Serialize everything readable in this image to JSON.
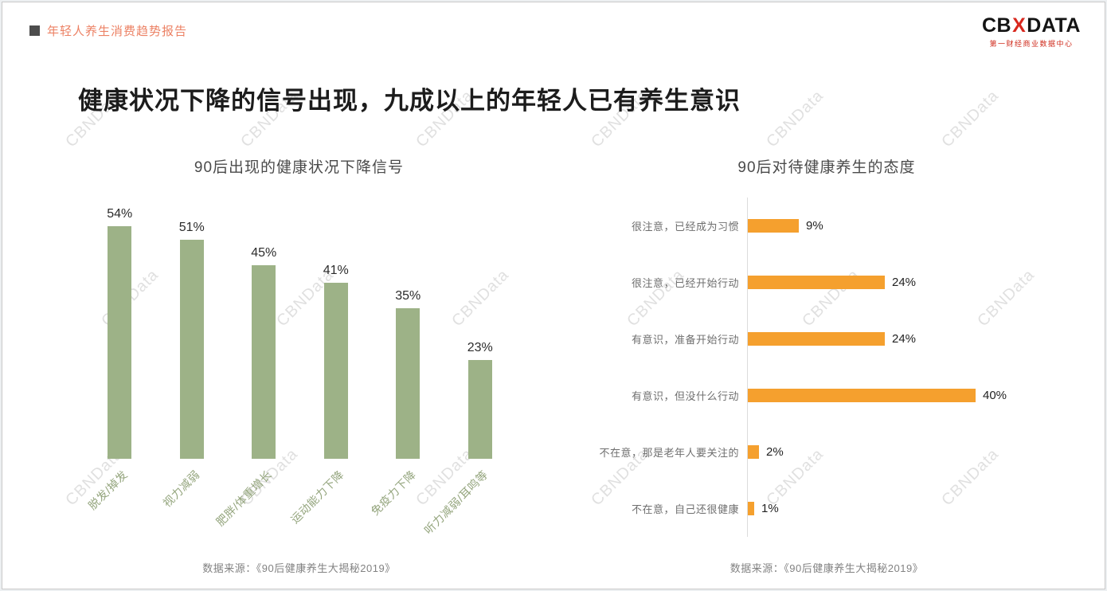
{
  "header": {
    "report_title": "年轻人养生消费趋势报告",
    "logo": {
      "prefix": "CB",
      "mark": "X",
      "suffix": "DATA",
      "subtitle": "第一财经商业数据中心"
    }
  },
  "main_title": "健康状况下降的信号出现，九成以上的年轻人已有养生意识",
  "watermark_text": "CBNData",
  "chart_data": [
    {
      "type": "bar",
      "orientation": "vertical",
      "title": "90后出现的健康状况下降信号",
      "categories": [
        "脱发/掉发",
        "视力减弱",
        "肥胖/体重增长",
        "运动能力下降",
        "免疫力下降",
        "听力减弱/耳鸣等"
      ],
      "values": [
        54,
        51,
        45,
        41,
        35,
        23
      ],
      "unit": "%",
      "ylim": [
        0,
        60
      ],
      "grid": false,
      "bar_color": "#9DB287",
      "source": "数据来源：《90后健康养生大揭秘2019》"
    },
    {
      "type": "bar",
      "orientation": "horizontal",
      "title": "90后对待健康养生的态度",
      "categories": [
        "很注意，已经成为习惯",
        "很注意，已经开始行动",
        "有意识，准备开始行动",
        "有意识，但没什么行动",
        "不在意，那是老年人要关注的",
        "不在意，自己还很健康"
      ],
      "values": [
        9,
        24,
        24,
        40,
        2,
        1
      ],
      "unit": "%",
      "xlim": [
        0,
        45
      ],
      "grid": false,
      "bar_color": "#F5A02E",
      "source": "数据来源：《90后健康养生大揭秘2019》"
    }
  ]
}
